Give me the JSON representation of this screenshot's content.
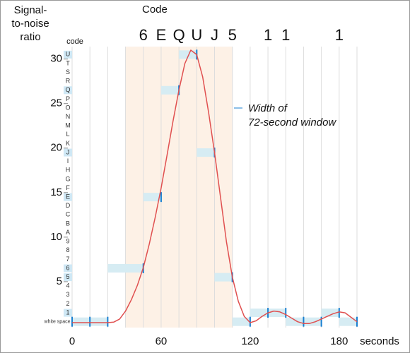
{
  "chart_data": {
    "type": "line",
    "title": "Code",
    "y_label": [
      "Signal-",
      "to-noise",
      "ratio"
    ],
    "x_label": "seconds",
    "code_axis_label": "code",
    "annotation": [
      "Width of",
      "72-second window"
    ],
    "xlim": [
      0,
      192
    ],
    "ylim": [
      0,
      31.4
    ],
    "xticks": [
      0,
      60,
      120,
      180
    ],
    "yticks": [
      5,
      10,
      15,
      20,
      25,
      30
    ],
    "xgrid": [
      0,
      12,
      24,
      36,
      48,
      60,
      72,
      84,
      96,
      108,
      120,
      132,
      144,
      156,
      168,
      180,
      192
    ],
    "window": [
      36,
      108
    ],
    "window_color": "#fdf1e6",
    "code_ticks": [
      {
        "value": 0.5,
        "label": "white space"
      },
      {
        "value": 1.5,
        "label": "1"
      },
      {
        "value": 2.5,
        "label": "2"
      },
      {
        "value": 3.5,
        "label": "3"
      },
      {
        "value": 4.5,
        "label": "4"
      },
      {
        "value": 5.5,
        "label": "5"
      },
      {
        "value": 6.5,
        "label": "6"
      },
      {
        "value": 7.5,
        "label": "7"
      },
      {
        "value": 8.5,
        "label": "8"
      },
      {
        "value": 9.5,
        "label": "9"
      },
      {
        "value": 10.5,
        "label": "A"
      },
      {
        "value": 11.5,
        "label": "B"
      },
      {
        "value": 12.5,
        "label": "C"
      },
      {
        "value": 13.5,
        "label": "D"
      },
      {
        "value": 14.5,
        "label": "E"
      },
      {
        "value": 15.5,
        "label": "F"
      },
      {
        "value": 16.5,
        "label": "G"
      },
      {
        "value": 17.5,
        "label": "H"
      },
      {
        "value": 18.5,
        "label": "I"
      },
      {
        "value": 19.5,
        "label": "J"
      },
      {
        "value": 20.5,
        "label": "K"
      },
      {
        "value": 21.5,
        "label": "L"
      },
      {
        "value": 22.5,
        "label": "M"
      },
      {
        "value": 23.5,
        "label": "N"
      },
      {
        "value": 24.5,
        "label": "O"
      },
      {
        "value": 25.5,
        "label": "P"
      },
      {
        "value": 26.5,
        "label": "Q"
      },
      {
        "value": 27.5,
        "label": "R"
      },
      {
        "value": 28.5,
        "label": "S"
      },
      {
        "value": 29.5,
        "label": "T"
      },
      {
        "value": 30.5,
        "label": "U"
      }
    ],
    "curve": {
      "color": "#e05050",
      "x": [
        0,
        4,
        8,
        12,
        16,
        20,
        24,
        28,
        32,
        36,
        40,
        44,
        48,
        52,
        56,
        60,
        64,
        68,
        72,
        76,
        80,
        84,
        88,
        92,
        96,
        100,
        104,
        108,
        112,
        116,
        120,
        124,
        128,
        132,
        136,
        140,
        144,
        148,
        152,
        156,
        160,
        164,
        168,
        172,
        176,
        180,
        184,
        188,
        192
      ],
      "values": [
        0.4,
        0.4,
        0.4,
        0.4,
        0.4,
        0.4,
        0.4,
        0.45,
        0.8,
        1.7,
        3.0,
        4.6,
        6.6,
        9.2,
        12.2,
        15.5,
        19.2,
        23,
        26.5,
        29.5,
        31,
        30.5,
        28,
        24,
        19.5,
        14.5,
        9.5,
        5.5,
        2.8,
        1.1,
        0.4,
        0.6,
        1.1,
        1.5,
        1.7,
        1.6,
        1.3,
        0.9,
        0.5,
        0.3,
        0.3,
        0.5,
        0.8,
        1.1,
        1.4,
        1.6,
        1.5,
        1.0,
        0.5
      ]
    },
    "samples": {
      "color": "#1a7fd0",
      "band_color": "#d6ecf3",
      "x": [
        0,
        12,
        24,
        48,
        60,
        72,
        84,
        96,
        108,
        120,
        132,
        144,
        156,
        168,
        180,
        192
      ],
      "values": [
        0.5,
        0.5,
        0.5,
        6.5,
        14.5,
        26.5,
        30.5,
        19.5,
        5.5,
        0.5,
        1.5,
        1.5,
        0.5,
        0.5,
        1.5,
        0.5
      ]
    },
    "decoded": {
      "x": [
        48,
        60,
        72,
        84,
        96,
        108,
        132,
        144,
        180
      ],
      "labels": [
        "6",
        "E",
        "Q",
        "U",
        "J",
        "5",
        "1",
        "1",
        "1"
      ]
    }
  }
}
